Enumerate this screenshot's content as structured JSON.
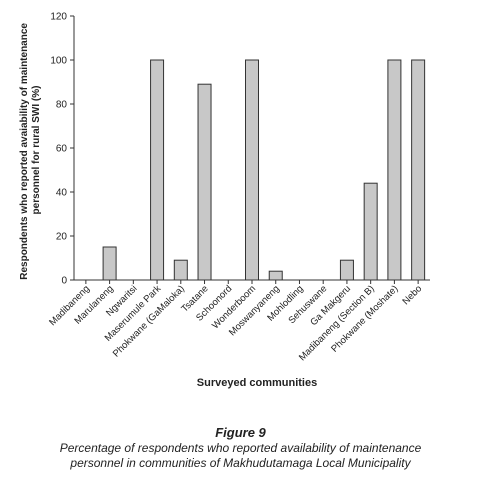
{
  "chart_data": {
    "type": "bar",
    "ylabel": "Respondents who reported avaiability of maintenance personnel for rural SWI (%)",
    "xlabel": "Surveyed communities",
    "ylim": [
      0,
      120
    ],
    "yticks": [
      0,
      20,
      40,
      60,
      80,
      100,
      120
    ],
    "categories": [
      "Madibaneng",
      "Marulaneng",
      "Ngwaritsi",
      "Maserumule Park",
      "Phokwane (GaMaloka)",
      "Tsatane",
      "Schoonord",
      "Wonderboom",
      "Moswanyaneng",
      "Mohlodling",
      "Sehuswane",
      "Ga Makgeru",
      "Madibaneng (Section B)",
      "Phokwane (Moshate)",
      "Nebo"
    ],
    "values": [
      0,
      15,
      0,
      100,
      9,
      89,
      0,
      100,
      4,
      0,
      0,
      9,
      44,
      100,
      100
    ],
    "bar_color": "#c8c8c8",
    "grid": false
  },
  "figure": {
    "label": "Figure 9",
    "caption_line1": "Percentage of respondents who reported availability of maintenance",
    "caption_line2": "personnel in communities of Makhudutamaga Local Municipality"
  }
}
